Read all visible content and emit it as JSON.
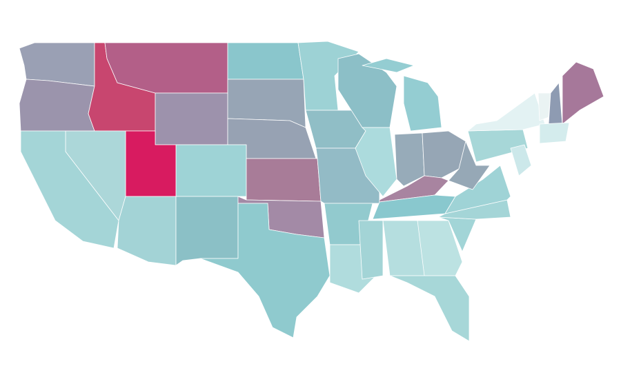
{
  "map": {
    "regions": [
      {
        "color": "#9aa0b4"
      },
      {
        "color": "#9b94ac"
      },
      {
        "color": "#c8466f"
      },
      {
        "color": "#b35f88"
      },
      {
        "color": "#9d92ac"
      },
      {
        "color": "#8ac6cc"
      },
      {
        "color": "#97a5b5"
      },
      {
        "color": "#97a2b3"
      },
      {
        "color": "#9ed3d6"
      },
      {
        "color": "#d81b60"
      },
      {
        "color": "#acd7d9"
      },
      {
        "color": "#a4d5d7"
      },
      {
        "color": "#a3d3d6"
      },
      {
        "color": "#8bc0c6"
      },
      {
        "color": "#a87c98"
      },
      {
        "color": "#a38aa6"
      },
      {
        "color": "#8fcace"
      },
      {
        "color": "#9dd2d5"
      },
      {
        "color": "#90bec6"
      },
      {
        "color": "#93bbc6"
      },
      {
        "color": "#92cace"
      },
      {
        "color": "#b0dcdd"
      },
      {
        "color": "#8cbfc7"
      },
      {
        "color": "#acdbdd"
      },
      {
        "color": "#94cdd2"
      },
      {
        "color": "#94cdd2"
      },
      {
        "color": "#97abb9"
      },
      {
        "color": "#96a6b5"
      },
      {
        "color": "#a884a0"
      },
      {
        "color": "#89c8ce"
      },
      {
        "color": "#a3d4d6"
      },
      {
        "color": "#b5dedf"
      },
      {
        "color": "#bce2e2"
      },
      {
        "color": "#a7d7d8"
      },
      {
        "color": "#a2d5d7"
      },
      {
        "color": "#a4d5d7"
      },
      {
        "color": "#9fd3d6"
      },
      {
        "color": "#96a8b6"
      },
      {
        "color": "#a7d7d8"
      },
      {
        "color": "#e3f2f3"
      },
      {
        "color": "#cce8ea"
      },
      {
        "color": "#eaf3f3"
      },
      {
        "color": "#8e9bb2"
      },
      {
        "color": "#a6789a"
      },
      {
        "color": "#d4eced"
      }
    ]
  }
}
